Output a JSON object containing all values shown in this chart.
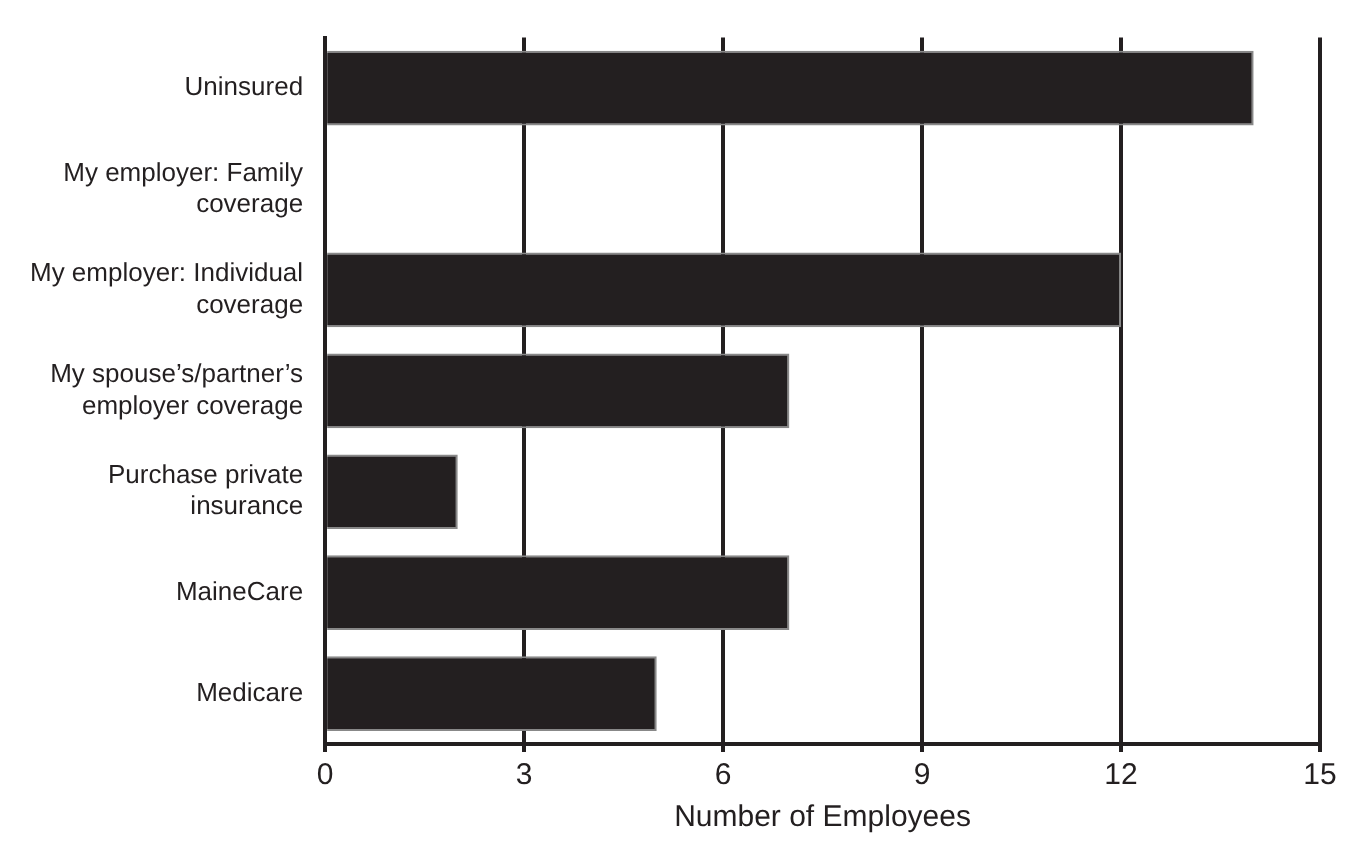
{
  "chart_data": {
    "type": "bar",
    "orientation": "horizontal",
    "xlabel": "Number of Employees",
    "categories": [
      "Uninsured",
      "My employer: Family coverage",
      "My employer: Individual coverage",
      "My spouse’s/partner’s employer coverage",
      "Purchase private insurance",
      "MaineCare",
      "Medicare"
    ],
    "values": [
      14,
      0,
      12,
      7,
      2,
      7,
      5
    ],
    "color": "#231f20",
    "xlim": [
      0,
      15
    ],
    "xticks": [
      0,
      3,
      6,
      9,
      12,
      15
    ],
    "grid": "x"
  }
}
